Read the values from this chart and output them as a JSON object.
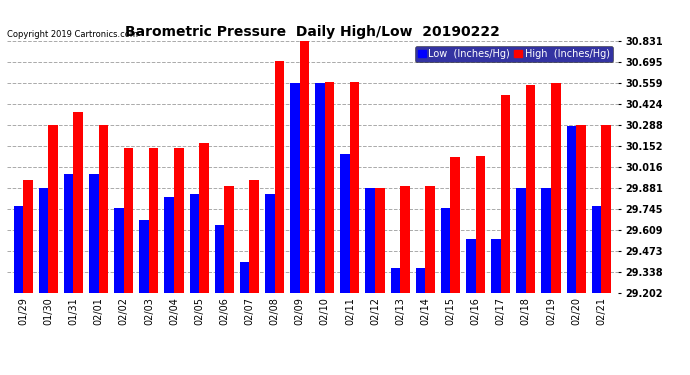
{
  "title": "Barometric Pressure  Daily High/Low  20190222",
  "copyright": "Copyright 2019 Cartronics.com",
  "dates": [
    "01/29",
    "01/30",
    "01/31",
    "02/01",
    "02/02",
    "02/03",
    "02/04",
    "02/05",
    "02/06",
    "02/07",
    "02/08",
    "02/09",
    "02/10",
    "02/11",
    "02/12",
    "02/13",
    "02/14",
    "02/15",
    "02/16",
    "02/17",
    "02/18",
    "02/19",
    "02/20",
    "02/21"
  ],
  "low_values": [
    29.76,
    29.88,
    29.97,
    29.97,
    29.75,
    29.67,
    29.82,
    29.84,
    29.64,
    29.4,
    29.84,
    30.56,
    30.56,
    30.1,
    29.88,
    29.36,
    29.36,
    29.75,
    29.55,
    29.55,
    29.88,
    29.88,
    30.28,
    29.76
  ],
  "high_values": [
    29.93,
    30.29,
    30.37,
    30.29,
    30.14,
    30.14,
    30.14,
    30.17,
    29.89,
    29.93,
    30.7,
    30.83,
    30.57,
    30.57,
    29.88,
    29.89,
    29.89,
    30.08,
    30.09,
    30.48,
    30.55,
    30.56,
    30.29,
    30.29
  ],
  "low_color": "#0000ff",
  "high_color": "#ff0000",
  "bg_color": "#ffffff",
  "grid_color": "#aaaaaa",
  "ylim_min": 29.202,
  "ylim_max": 30.831,
  "yticks": [
    29.202,
    29.338,
    29.473,
    29.609,
    29.745,
    29.881,
    30.016,
    30.152,
    30.288,
    30.424,
    30.559,
    30.695,
    30.831
  ],
  "title_fontsize": 10,
  "tick_fontsize": 7,
  "legend_fontsize": 7,
  "bar_width": 0.38
}
